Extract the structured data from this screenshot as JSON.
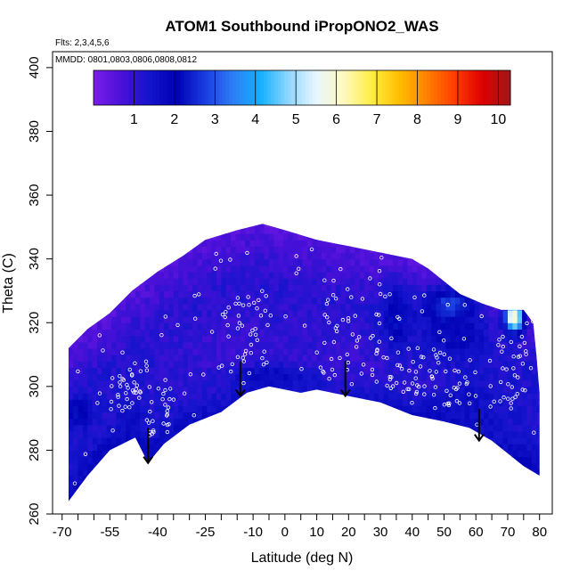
{
  "chart_data": {
    "type": "heatmap",
    "title": "ATOM1 Southbound iPropONO2_WAS",
    "flights_note": "Flts: 2,3,4,5,6",
    "mmdd_note": "MMDD: 0801,0803,0806,0808,0812",
    "xlabel": "Latitude (deg N)",
    "ylabel": "Theta (C)",
    "xlim": [
      -73,
      84
    ],
    "ylim": [
      260,
      405
    ],
    "x_ticks": [
      -70,
      -55,
      -40,
      -25,
      -10,
      0,
      10,
      20,
      30,
      40,
      50,
      60,
      70,
      80
    ],
    "x_tick_labels": [
      "-70",
      "-55",
      "-40",
      "-25",
      "-10",
      "0",
      "10",
      "20",
      "30",
      "40",
      "50",
      "60",
      "70",
      "80"
    ],
    "x_minor_ticks": [
      -65,
      -60,
      -50,
      -45,
      -35,
      -30,
      -20,
      -15,
      -5,
      5,
      15,
      25,
      35,
      45,
      55,
      65,
      75
    ],
    "y_ticks": [
      260,
      280,
      300,
      320,
      340,
      360,
      380,
      400
    ],
    "y_tick_labels": [
      "260",
      "280",
      "300",
      "320",
      "340",
      "360",
      "380",
      "400"
    ],
    "colorbar": {
      "range": [
        0,
        10.3
      ],
      "ticks": [
        1,
        2,
        3,
        4,
        5,
        6,
        7,
        8,
        9,
        10
      ],
      "tick_labels": [
        "1",
        "2",
        "3",
        "4",
        "5",
        "6",
        "7",
        "8",
        "9",
        "10"
      ],
      "colors": [
        "#7a1ee8",
        "#4a10d8",
        "#1414cc",
        "#0000b4",
        "#1a3ce0",
        "#2d7df5",
        "#12b0ff",
        "#8ed6ff",
        "#e8f6ff",
        "#fff8c0",
        "#ffee44",
        "#ffbe00",
        "#ff8000",
        "#ff3c00",
        "#dc0000",
        "#a01818"
      ]
    },
    "upper_boundary": [
      [
        -68,
        312
      ],
      [
        -62,
        318
      ],
      [
        -55,
        323
      ],
      [
        -48,
        330
      ],
      [
        -40,
        336
      ],
      [
        -32,
        341
      ],
      [
        -25,
        346
      ],
      [
        -15,
        349
      ],
      [
        -7,
        351
      ],
      [
        0,
        349
      ],
      [
        10,
        346
      ],
      [
        20,
        344
      ],
      [
        30,
        342
      ],
      [
        40,
        340
      ],
      [
        45,
        337
      ],
      [
        50,
        333
      ],
      [
        55,
        329
      ],
      [
        62,
        326
      ],
      [
        68,
        324
      ],
      [
        75,
        324
      ],
      [
        78,
        320
      ],
      [
        79,
        310
      ],
      [
        80,
        298
      ],
      [
        80,
        272
      ]
    ],
    "lower_boundary": [
      [
        -68,
        264
      ],
      [
        -62,
        272
      ],
      [
        -55,
        280
      ],
      [
        -47,
        284
      ],
      [
        -43,
        276
      ],
      [
        -38,
        282
      ],
      [
        -30,
        288
      ],
      [
        -20,
        292
      ],
      [
        -12,
        298
      ],
      [
        -5,
        300
      ],
      [
        5,
        298
      ],
      [
        10,
        299
      ],
      [
        20,
        297
      ],
      [
        30,
        295
      ],
      [
        40,
        291
      ],
      [
        50,
        289
      ],
      [
        58,
        287
      ],
      [
        65,
        283
      ],
      [
        70,
        279
      ],
      [
        75,
        275
      ],
      [
        80,
        272
      ]
    ],
    "features": [
      {
        "lat": 0,
        "theta": 320,
        "sx": 55,
        "sy": 28,
        "value": 0.9
      },
      {
        "lat": -20,
        "theta": 310,
        "sx": 18,
        "sy": 12,
        "value": 0.7
      },
      {
        "lat": 15,
        "theta": 306,
        "sx": 20,
        "sy": 10,
        "value": 0.7
      },
      {
        "lat": 35,
        "theta": 322,
        "sx": 4,
        "sy": 10,
        "value": 2.2
      },
      {
        "lat": 52,
        "theta": 325,
        "sx": 8,
        "sy": 6,
        "value": 3.0
      },
      {
        "lat": 55,
        "theta": 316,
        "sx": 10,
        "sy": 7,
        "value": 1.9
      },
      {
        "lat": 72,
        "theta": 322,
        "sx": 3,
        "sy": 5,
        "value": 5.5
      },
      {
        "lat": 72,
        "theta": 322,
        "sx": 1.6,
        "sy": 2.5,
        "value": 6.0
      },
      {
        "lat": 57,
        "theta": 296,
        "sx": 8,
        "sy": 5,
        "value": 1.7
      },
      {
        "lat": 65,
        "theta": 285,
        "sx": 8,
        "sy": 6,
        "value": 1.5
      },
      {
        "lat": -65,
        "theta": 292,
        "sx": 4,
        "sy": 4,
        "value": 2.4
      },
      {
        "lat": -48,
        "theta": 290,
        "sx": 4,
        "sy": 5,
        "value": 1.7
      },
      {
        "lat": -5,
        "theta": 303,
        "sx": 14,
        "sy": 4,
        "value": 1.8
      },
      {
        "lat": 40,
        "theta": 300,
        "sx": 8,
        "sy": 4,
        "value": 1.0
      }
    ],
    "sample_points_count": 330,
    "arrows": [
      {
        "lat": -43,
        "theta_start": 287,
        "theta_end": 276
      },
      {
        "lat": -14,
        "theta_start": 308,
        "theta_end": 297
      },
      {
        "lat": 19,
        "theta_start": 308,
        "theta_end": 297
      },
      {
        "lat": 61,
        "theta_start": 293,
        "theta_end": 283
      }
    ]
  }
}
